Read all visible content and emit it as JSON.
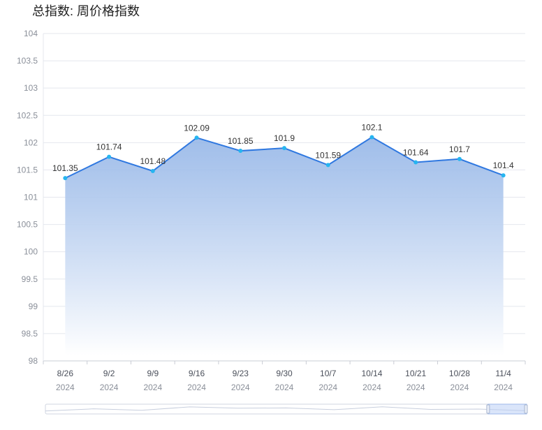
{
  "title": "总指数: 周价格指数",
  "chart_data": {
    "type": "area",
    "categories": [
      "8/26",
      "9/2",
      "9/9",
      "9/16",
      "9/23",
      "9/30",
      "10/7",
      "10/14",
      "10/21",
      "10/28",
      "11/4"
    ],
    "category_years": [
      "2024",
      "2024",
      "2024",
      "2024",
      "2024",
      "2024",
      "2024",
      "2024",
      "2024",
      "2024",
      "2024"
    ],
    "values": [
      101.35,
      101.74,
      101.48,
      102.09,
      101.85,
      101.9,
      101.59,
      102.1,
      101.64,
      101.7,
      101.4
    ],
    "value_labels": [
      "101.35",
      "101.74",
      "101.48",
      "102.09",
      "101.85",
      "101.9",
      "101.59",
      "102.1",
      "101.64",
      "101.7",
      "101.4"
    ],
    "ylim": [
      98,
      104
    ],
    "yticks": [
      "98",
      "98.5",
      "99",
      "99.5",
      "100",
      "100.5",
      "101",
      "101.5",
      "102",
      "102.5",
      "103",
      "103.5",
      "104"
    ],
    "grid": true,
    "colors": {
      "line": "#2f78e0",
      "point": "#26b5f0",
      "fill_top": "#8fb2e6",
      "fill_bottom": "#ffffff"
    },
    "data_zoom": {
      "start": 0.92,
      "end": 1.0
    }
  }
}
